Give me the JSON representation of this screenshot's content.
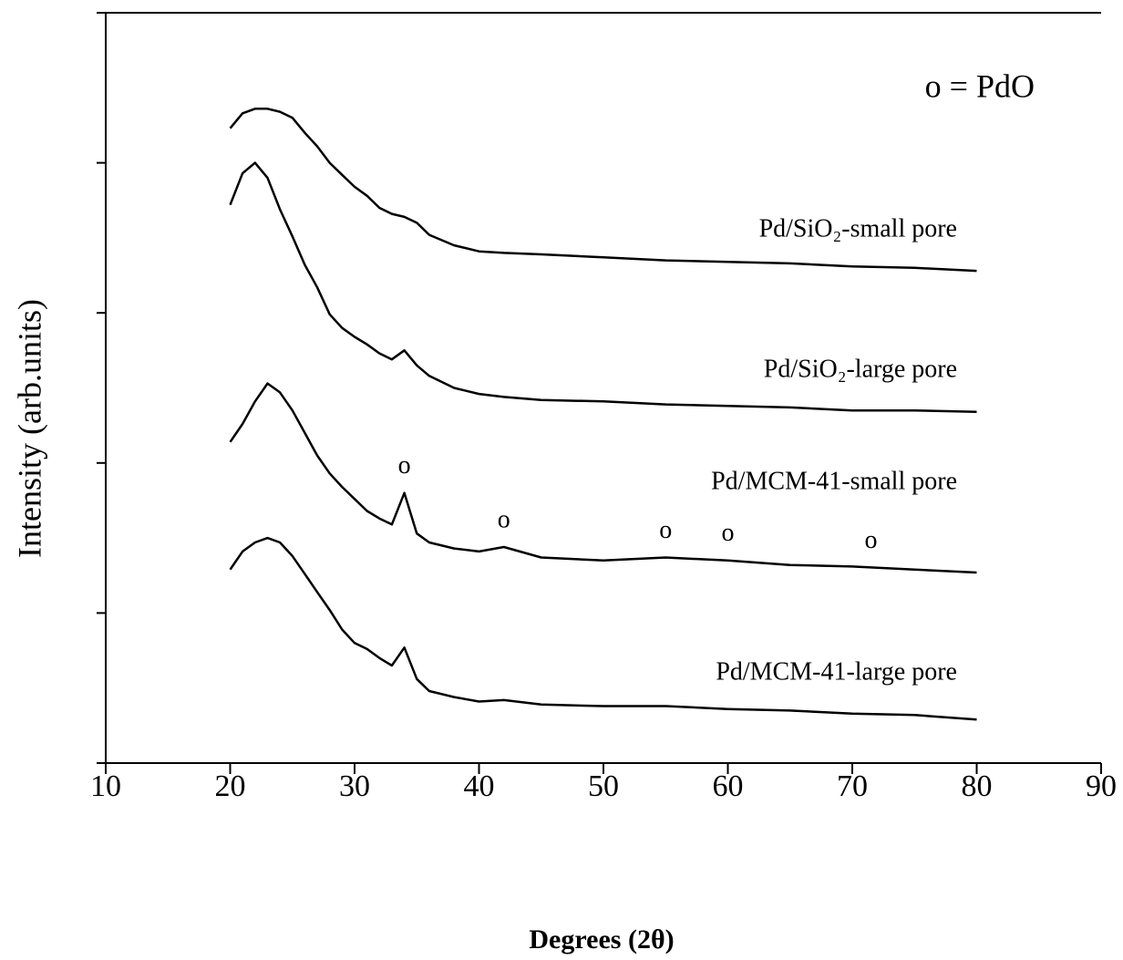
{
  "chart_data": {
    "type": "line",
    "xlabel": "Degrees (2θ)",
    "ylabel": "Intensity (arb.units)",
    "legend_text": "o = PdO",
    "peak_marker": "o",
    "peak_positions": [
      34,
      42,
      55,
      60,
      71.5
    ],
    "xlim": [
      10,
      90
    ],
    "xticks": [
      10,
      20,
      30,
      40,
      50,
      60,
      70,
      80,
      90
    ],
    "ylim": [
      0,
      5
    ],
    "yticks": [
      0,
      1,
      2,
      3,
      4,
      5
    ],
    "x": [
      20,
      21,
      22,
      23,
      24,
      25,
      26,
      27,
      28,
      29,
      30,
      31,
      32,
      33,
      34,
      35,
      36,
      38,
      40,
      42,
      45,
      50,
      55,
      60,
      65,
      70,
      75,
      80
    ],
    "series": [
      {
        "name": "Pd/SiO₂-small pore",
        "color": "#000000",
        "values": [
          4.23,
          4.33,
          4.36,
          4.36,
          4.34,
          4.3,
          4.2,
          4.11,
          4.0,
          3.92,
          3.84,
          3.78,
          3.7,
          3.66,
          3.64,
          3.6,
          3.52,
          3.45,
          3.41,
          3.4,
          3.39,
          3.37,
          3.35,
          3.34,
          3.33,
          3.31,
          3.3,
          3.28
        ]
      },
      {
        "name": "Pd/SiO₂-large pore",
        "color": "#000000",
        "values": [
          3.72,
          3.93,
          4.0,
          3.9,
          3.69,
          3.51,
          3.32,
          3.17,
          2.99,
          2.9,
          2.84,
          2.79,
          2.73,
          2.69,
          2.75,
          2.65,
          2.58,
          2.5,
          2.46,
          2.44,
          2.42,
          2.41,
          2.39,
          2.38,
          2.37,
          2.35,
          2.35,
          2.34
        ]
      },
      {
        "name": "Pd/MCM-41-small pore",
        "color": "#000000",
        "values": [
          2.14,
          2.26,
          2.41,
          2.53,
          2.47,
          2.35,
          2.2,
          2.05,
          1.93,
          1.84,
          1.76,
          1.68,
          1.63,
          1.59,
          1.8,
          1.53,
          1.47,
          1.43,
          1.41,
          1.44,
          1.37,
          1.35,
          1.37,
          1.35,
          1.32,
          1.31,
          1.29,
          1.27
        ]
      },
      {
        "name": "Pd/MCM-41-large pore",
        "color": "#000000",
        "values": [
          1.29,
          1.41,
          1.47,
          1.5,
          1.47,
          1.38,
          1.26,
          1.14,
          1.02,
          0.89,
          0.8,
          0.76,
          0.7,
          0.65,
          0.77,
          0.56,
          0.48,
          0.44,
          0.41,
          0.42,
          0.39,
          0.38,
          0.38,
          0.36,
          0.35,
          0.33,
          0.32,
          0.29
        ]
      }
    ],
    "peak_series": 2
  }
}
